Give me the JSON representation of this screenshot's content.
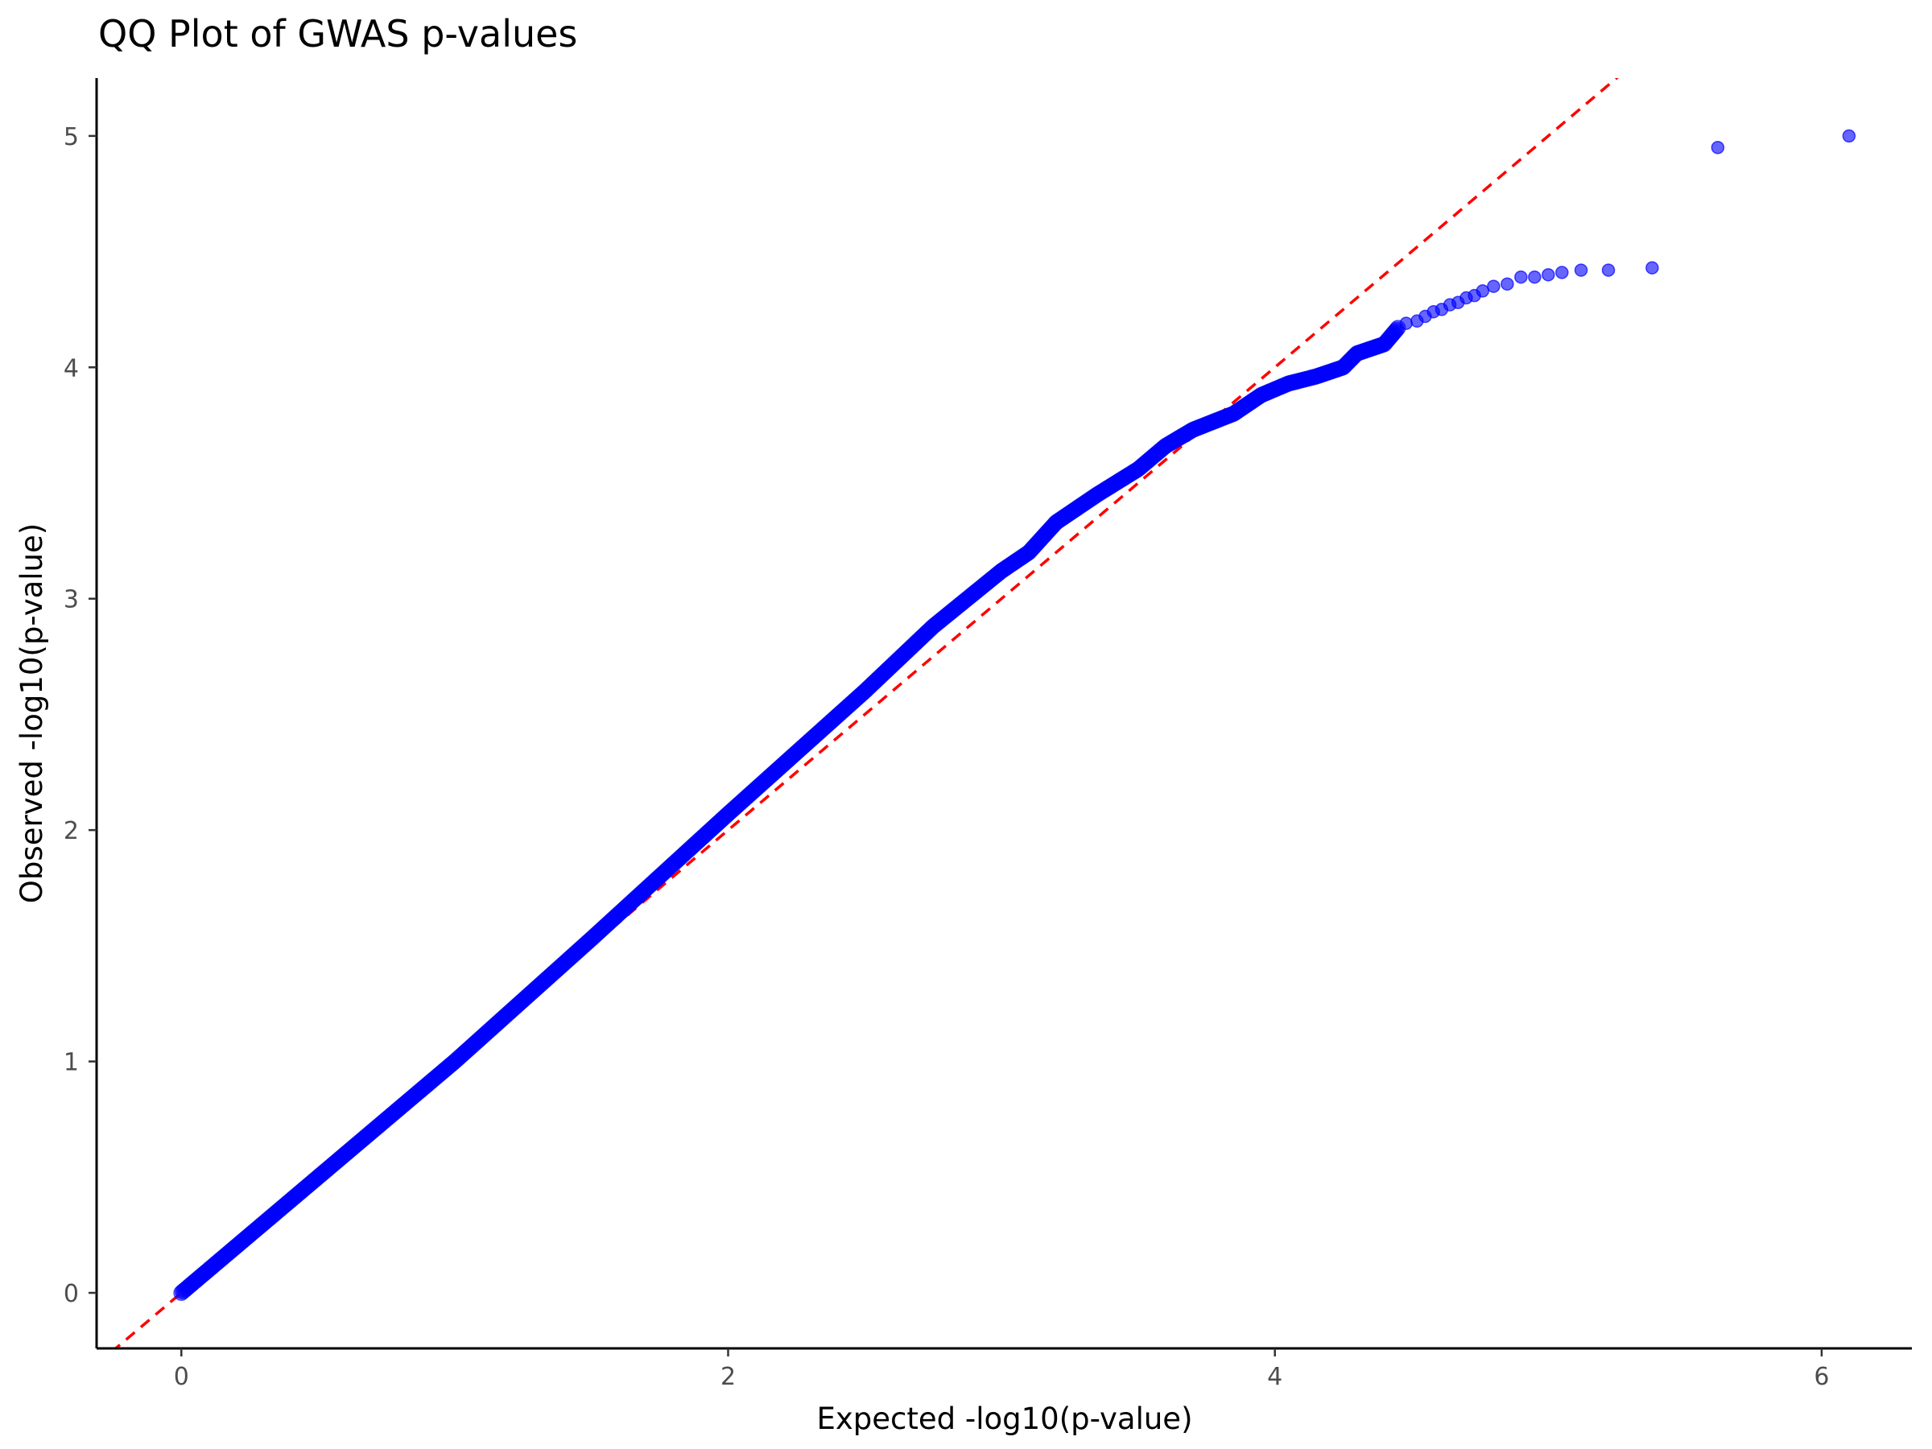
{
  "chart_data": {
    "type": "scatter",
    "title": "QQ Plot of GWAS p-values",
    "xlabel": "Expected -log10(p-value)",
    "ylabel": "Observed -log10(p-value)",
    "xlim": [
      -0.31,
      6.33
    ],
    "ylim": [
      -0.24,
      5.25
    ],
    "xticks": [
      0,
      2,
      4,
      6
    ],
    "yticks": [
      0,
      1,
      2,
      3,
      4,
      5
    ],
    "grid": false,
    "legend": "none",
    "point_color": "#0000ff",
    "point_opacity": 0.6,
    "reference_line": {
      "slope": 1,
      "intercept": 0,
      "style": "dashed",
      "color": "#ff0000"
    },
    "curve_anchor_points": [
      [
        0.0,
        0.0
      ],
      [
        0.5,
        0.5
      ],
      [
        1.0,
        1.0
      ],
      [
        1.5,
        1.53
      ],
      [
        2.0,
        2.07
      ],
      [
        2.5,
        2.6
      ],
      [
        2.75,
        2.88
      ],
      [
        3.0,
        3.12
      ],
      [
        3.1,
        3.2
      ],
      [
        3.2,
        3.33
      ],
      [
        3.35,
        3.45
      ],
      [
        3.5,
        3.56
      ],
      [
        3.6,
        3.66
      ],
      [
        3.7,
        3.73
      ],
      [
        3.85,
        3.8
      ],
      [
        3.95,
        3.88
      ],
      [
        4.05,
        3.93
      ],
      [
        4.15,
        3.96
      ],
      [
        4.25,
        4.0
      ],
      [
        4.3,
        4.06
      ],
      [
        4.4,
        4.1
      ],
      [
        4.45,
        4.17
      ]
    ],
    "tail_points": [
      [
        4.48,
        4.19
      ],
      [
        4.52,
        4.2
      ],
      [
        4.55,
        4.22
      ],
      [
        4.58,
        4.24
      ],
      [
        4.61,
        4.25
      ],
      [
        4.64,
        4.27
      ],
      [
        4.67,
        4.28
      ],
      [
        4.7,
        4.3
      ],
      [
        4.73,
        4.31
      ],
      [
        4.76,
        4.33
      ],
      [
        4.8,
        4.35
      ],
      [
        4.85,
        4.36
      ],
      [
        4.9,
        4.39
      ],
      [
        4.95,
        4.39
      ],
      [
        5.0,
        4.4
      ],
      [
        5.05,
        4.41
      ],
      [
        5.12,
        4.42
      ],
      [
        5.22,
        4.42
      ],
      [
        5.38,
        4.43
      ],
      [
        5.62,
        4.95
      ],
      [
        6.1,
        5.0
      ]
    ]
  }
}
